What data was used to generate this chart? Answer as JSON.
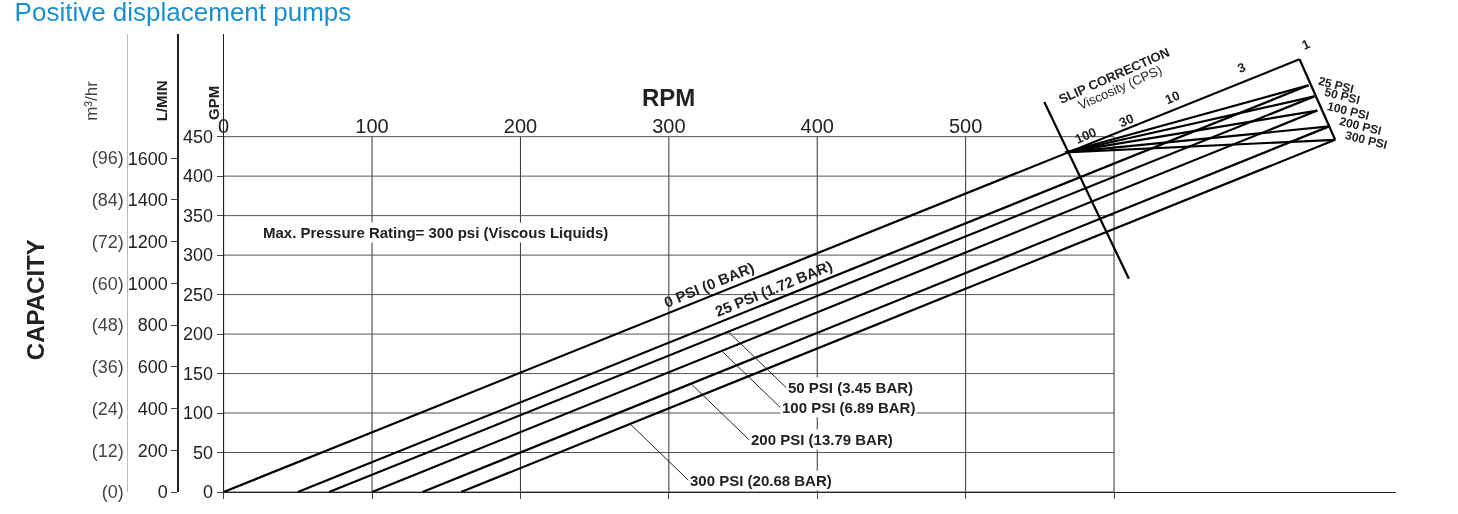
{
  "chart_data": {
    "type": "line",
    "title": "Positive displacement pumps",
    "xlabel": "RPM",
    "ylabel": "GPM",
    "y2label": "L/MIN",
    "y3label": "m³/hr",
    "xlim": [
      0,
      790
    ],
    "ylim": [
      0,
      580
    ],
    "y2lim": [
      0,
      2195.3
    ],
    "y3lim": [
      0,
      131.7
    ],
    "xticks": [
      0,
      100,
      200,
      300,
      400,
      500,
      {
        "value": 600,
        "label": null
      }
    ],
    "yticks": [
      0,
      50,
      100,
      150,
      200,
      250,
      300,
      350,
      400,
      450
    ],
    "y2ticks": [
      0,
      200,
      400,
      600,
      800,
      1000,
      1200,
      1400,
      1600
    ],
    "y3ticks": [
      {
        "value": 0,
        "label": "(0)"
      },
      {
        "value": 12,
        "label": "(12)"
      },
      {
        "value": 24,
        "label": "(24)"
      },
      {
        "value": 36,
        "label": "(36)"
      },
      {
        "value": 48,
        "label": "(48)"
      },
      {
        "value": 60,
        "label": "(60)"
      },
      {
        "value": 72,
        "label": "(72)"
      },
      {
        "value": 84,
        "label": "(84)"
      },
      {
        "value": 96,
        "label": "(96)"
      }
    ],
    "grid": true,
    "marker": "none",
    "line_style": "solid",
    "series": [
      {
        "color": "#000000",
        "x": [
          0,
          725
        ],
        "values": [
          0,
          548
        ]
      },
      {
        "color": "#000000",
        "x": [
          50,
          731
        ],
        "values": [
          0,
          515
        ]
      },
      {
        "color": "#000000",
        "x": [
          71,
          735
        ],
        "values": [
          0,
          501
        ]
      },
      {
        "color": "#000000",
        "x": [
          100,
          737
        ],
        "values": [
          0,
          483
        ]
      },
      {
        "color": "#000000",
        "x": [
          134,
          745
        ],
        "values": [
          0,
          463
        ]
      },
      {
        "color": "#000000",
        "x": [
          160,
          749
        ],
        "values": [
          0,
          446
        ]
      },
      {
        "color": "#000000",
        "x": [
          567,
          731
        ],
        "values": [
          430,
          515
        ]
      },
      {
        "color": "#000000",
        "x": [
          567,
          735
        ],
        "values": [
          430,
          501
        ]
      },
      {
        "color": "#000000",
        "x": [
          567,
          737
        ],
        "values": [
          430,
          483
        ]
      },
      {
        "color": "#000000",
        "x": [
          567,
          745
        ],
        "values": [
          430,
          463
        ]
      },
      {
        "color": "#000000",
        "x": [
          567,
          749
        ],
        "values": [
          430,
          446
        ]
      },
      {
        "color": "#000000",
        "x": [
          553,
          610
        ],
        "values": [
          494,
          270
        ]
      },
      {
        "color": "#000000",
        "x": [
          725,
          749
        ],
        "values": [
          548,
          446
        ]
      }
    ],
    "annotations": [
      "CAPACITY",
      "Max. Pressure Rating= 300 psi (Viscous Liquids)",
      {
        "text": "0 PSI (0 BAR)",
        "x": 330,
        "y": 249
      },
      {
        "text": "25 PSI (1.72 BAR)",
        "x": 373,
        "y": 244
      },
      {
        "text": "50 PSI (3.45 BAR)",
        "x": 340,
        "y": 203
      },
      {
        "text": "100 PSI (6.89 BAR)",
        "x": 336,
        "y": 178
      },
      {
        "text": "200 PSI (13.79 BAR)",
        "x": 315,
        "y": 137
      },
      {
        "text": "300 PSI (20.68 BAR)",
        "x": 274,
        "y": 86
      },
      "SLIP CORRECTION",
      "Viscosity (CPS)",
      "100",
      "30",
      "10",
      "3",
      "1",
      {
        "text": "25 PSI",
        "x": 731,
        "y": 515
      },
      {
        "text": "50 PSI",
        "x": 735,
        "y": 501
      },
      {
        "text": "100 PSI",
        "x": 737,
        "y": 483
      },
      {
        "text": "200 PSI",
        "x": 745,
        "y": 463
      },
      {
        "text": "300 PSI",
        "x": 749,
        "y": 446
      }
    ]
  }
}
